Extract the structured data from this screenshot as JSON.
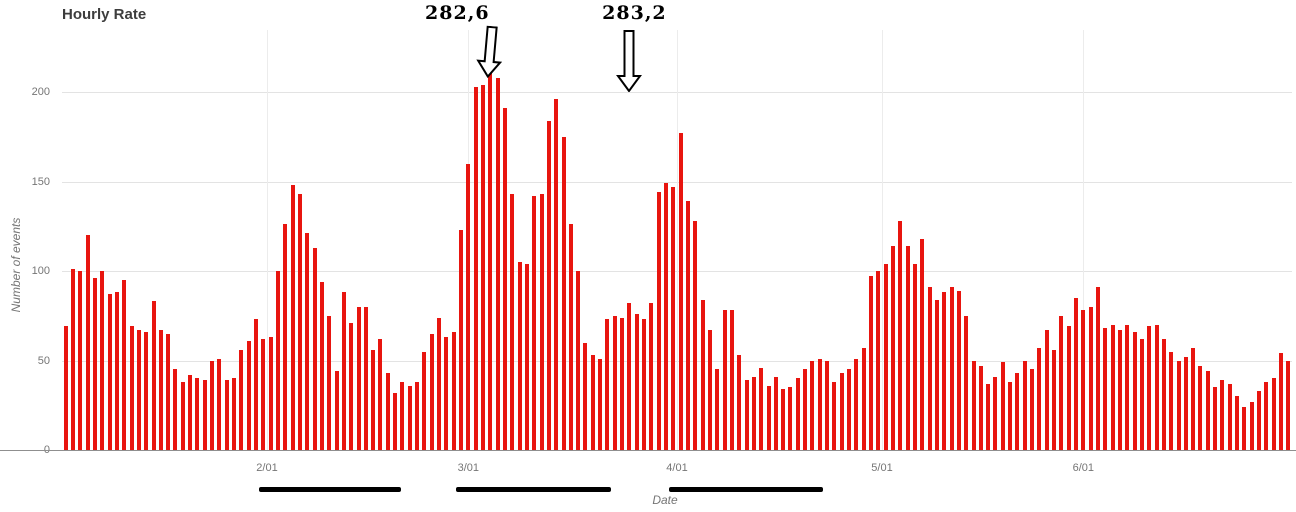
{
  "chart_data": {
    "type": "bar",
    "title": "Hourly Rate",
    "xlabel": "Date",
    "ylabel": "Number of events",
    "bar_color": "#e8150f",
    "grid": true,
    "legend": false,
    "ylim": [
      0,
      234
    ],
    "yticks": [
      0,
      50,
      100,
      150,
      200
    ],
    "xticks": [
      {
        "label": "2/01",
        "index": 27.5
      },
      {
        "label": "3/01",
        "index": 55.0
      },
      {
        "label": "4/01",
        "index": 83.5
      },
      {
        "label": "5/01",
        "index": 111.5
      },
      {
        "label": "6/01",
        "index": 139.0
      }
    ],
    "values": [
      69,
      101,
      100,
      120,
      96,
      100,
      87,
      88,
      95,
      69,
      67,
      66,
      83,
      67,
      65,
      45,
      38,
      42,
      40,
      39,
      50,
      51,
      39,
      40,
      56,
      61,
      73,
      62,
      63,
      100,
      126,
      148,
      143,
      121,
      113,
      94,
      75,
      44,
      88,
      71,
      80,
      80,
      56,
      62,
      43,
      32,
      38,
      36,
      38,
      55,
      65,
      74,
      63,
      66,
      123,
      160,
      203,
      204,
      212,
      208,
      191,
      143,
      105,
      104,
      142,
      143,
      184,
      196,
      175,
      126,
      100,
      60,
      53,
      51,
      73,
      75,
      74,
      82,
      76,
      73,
      82,
      144,
      149,
      147,
      177,
      139,
      128,
      84,
      67,
      45,
      78,
      78,
      53,
      39,
      41,
      46,
      36,
      41,
      34,
      35,
      40,
      45,
      50,
      51,
      50,
      38,
      43,
      45,
      51,
      57,
      97,
      100,
      104,
      114,
      128,
      114,
      104,
      118,
      91,
      84,
      88,
      91,
      89,
      75,
      50,
      47,
      37,
      41,
      49,
      38,
      43,
      50,
      45,
      57,
      67,
      56,
      75,
      69,
      85,
      78,
      80,
      91,
      68,
      70,
      67,
      70,
      66,
      62,
      69,
      70,
      62,
      55,
      50,
      52,
      57,
      47,
      44,
      35,
      39,
      37,
      30,
      24,
      27,
      33,
      38,
      40,
      54,
      50
    ],
    "annotations": [
      {
        "label": "282,6",
        "bar_index": 58,
        "tip_value": 208,
        "arrow_top": 26,
        "label_offset_x": -33,
        "tilt": 5
      },
      {
        "label": "283,2",
        "bar_index": 77,
        "tip_value": 200,
        "arrow_top": 30,
        "label_offset_x": 5,
        "tilt": 0
      }
    ],
    "highlight_segments": [
      {
        "start_index": 26.4,
        "end_index": 45.8
      },
      {
        "start_index": 53.3,
        "end_index": 74.5
      },
      {
        "start_index": 82.4,
        "end_index": 103.4
      }
    ]
  }
}
